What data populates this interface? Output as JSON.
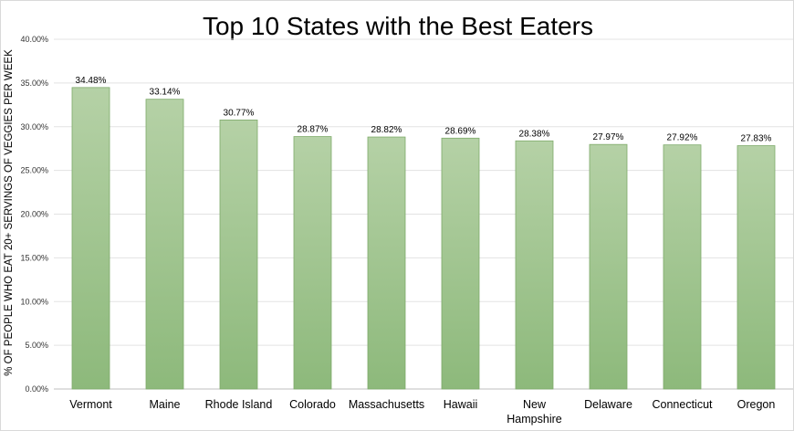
{
  "chart_data": {
    "type": "bar",
    "title": "Top 10 States with the Best Eaters",
    "xlabel": "",
    "ylabel": "% OF PEOPLE WHO EAT 20+ SERVINGS OF VEGGIES PER WEEK",
    "categories": [
      "Vermont",
      "Maine",
      "Rhode Island",
      "Colorado",
      "Massachusetts",
      "Hawaii",
      "New Hampshire",
      "Delaware",
      "Connecticut",
      "Oregon"
    ],
    "values": [
      34.48,
      33.14,
      30.77,
      28.87,
      28.82,
      28.69,
      28.38,
      27.97,
      27.92,
      27.83
    ],
    "data_labels": [
      "34.48%",
      "33.14%",
      "30.77%",
      "28.87%",
      "28.82%",
      "28.69%",
      "28.38%",
      "27.97%",
      "27.92%",
      "27.83%"
    ],
    "ylim": [
      0,
      40
    ],
    "yticks": [
      0,
      5,
      10,
      15,
      20,
      25,
      30,
      35,
      40
    ],
    "ytick_labels": [
      "0.00%",
      "5.00%",
      "10.00%",
      "15.00%",
      "20.00%",
      "25.00%",
      "30.00%",
      "35.00%",
      "40.00%"
    ],
    "grid": true,
    "legend": "none",
    "colors": {
      "bar_top": "#b5d1a6",
      "bar_bottom": "#8db97b",
      "bar_edge": "#7eaa6a",
      "grid": "#e3e3e3",
      "axis": "#bfbfbf"
    }
  }
}
